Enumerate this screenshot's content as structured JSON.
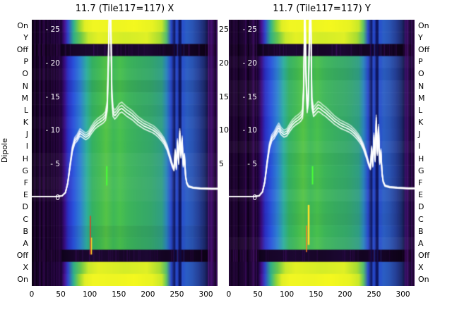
{
  "chart_data": {
    "type": "heatmap",
    "subtype": "per-dipole spectrum heatmap with white bandpass line overlay",
    "dipole_axis_label": "Dipole",
    "rows": [
      "On",
      "Y",
      "Off",
      "P",
      "O",
      "N",
      "M",
      "L",
      "K",
      "J",
      "I",
      "H",
      "G",
      "F",
      "E",
      "D",
      "C",
      "B",
      "A",
      "Off",
      "X",
      "On"
    ],
    "row_states": [
      "on",
      "bright",
      "off",
      "n",
      "n",
      "n",
      "n",
      "n",
      "n",
      "n",
      "n",
      "n",
      "n",
      "n",
      "n",
      "n",
      "n",
      "n",
      "n",
      "off",
      "bright",
      "on"
    ],
    "x_range": [
      0,
      320
    ],
    "x_ticks": [
      0,
      50,
      100,
      150,
      200,
      250,
      300
    ],
    "x_tick_labels": [
      "0",
      "50",
      "100",
      "150",
      "200",
      "250",
      "300"
    ],
    "y_ticks": [
      25,
      20,
      15,
      10,
      5,
      0
    ],
    "inside_y_tick_labels": [
      "- 25",
      "- 20",
      "- 15",
      "- 10",
      "- 5",
      "0"
    ],
    "right_axis_labels": [
      "25",
      "20",
      "15",
      "10",
      "5"
    ],
    "line_color": "#ffffff",
    "colormap_stops": {
      "n": [
        [
          0,
          "#0d0116"
        ],
        [
          0.15,
          "#120222"
        ],
        [
          0.175,
          "#3a0b7e"
        ],
        [
          0.195,
          "#2b2ec2"
        ],
        [
          0.225,
          "#2a52dc"
        ],
        [
          0.26,
          "#2e7fd2"
        ],
        [
          0.295,
          "#2fae9e"
        ],
        [
          0.325,
          "#35b163"
        ],
        [
          0.365,
          "#41ba52"
        ],
        [
          0.4,
          "#55c447"
        ],
        [
          0.44,
          "#3fb957"
        ],
        [
          0.475,
          "#49c14e"
        ],
        [
          0.52,
          "#3db55a"
        ],
        [
          0.58,
          "#38ad62"
        ],
        [
          0.64,
          "#35a76b"
        ],
        [
          0.7,
          "#309e85"
        ],
        [
          0.725,
          "#2b84bc"
        ],
        [
          0.75,
          "#2a49cc"
        ],
        [
          0.765,
          "#17246e"
        ],
        [
          0.78,
          "#2a4ed4"
        ],
        [
          0.795,
          "#101a64"
        ],
        [
          0.81,
          "#2a52cc"
        ],
        [
          0.835,
          "#2b5ec4"
        ],
        [
          0.865,
          "#2a55b4"
        ],
        [
          0.9,
          "#253f96"
        ],
        [
          0.93,
          "#1d2a6e"
        ],
        [
          0.955,
          "#120b34"
        ],
        [
          1,
          "#0c0114"
        ]
      ],
      "on": [
        [
          0,
          "#0d0116"
        ],
        [
          0.155,
          "#14032a"
        ],
        [
          0.175,
          "#4a1090"
        ],
        [
          0.195,
          "#3248cc"
        ],
        [
          0.225,
          "#2fb090"
        ],
        [
          0.255,
          "#8fd437"
        ],
        [
          0.285,
          "#e0ee25"
        ],
        [
          0.33,
          "#f2f722"
        ],
        [
          0.45,
          "#eef522"
        ],
        [
          0.55,
          "#f4f81e"
        ],
        [
          0.65,
          "#e8f322"
        ],
        [
          0.7,
          "#c8e82a"
        ],
        [
          0.725,
          "#62c460"
        ],
        [
          0.75,
          "#2a49cc"
        ],
        [
          0.765,
          "#17246e"
        ],
        [
          0.78,
          "#2a4ed4"
        ],
        [
          0.795,
          "#101a64"
        ],
        [
          0.81,
          "#2a52cc"
        ],
        [
          0.835,
          "#2b5ec4"
        ],
        [
          0.865,
          "#2a55b4"
        ],
        [
          0.9,
          "#253f96"
        ],
        [
          0.93,
          "#1d2a6e"
        ],
        [
          0.955,
          "#120b34"
        ],
        [
          1,
          "#0c0114"
        ]
      ],
      "bright": [
        [
          0,
          "#0d0116"
        ],
        [
          0.155,
          "#14032a"
        ],
        [
          0.175,
          "#400e86"
        ],
        [
          0.195,
          "#2f42c8"
        ],
        [
          0.225,
          "#2fae86"
        ],
        [
          0.265,
          "#6cc84a"
        ],
        [
          0.305,
          "#c8e82c"
        ],
        [
          0.36,
          "#e4f124"
        ],
        [
          0.5,
          "#d4ed28"
        ],
        [
          0.62,
          "#dff026"
        ],
        [
          0.69,
          "#a8dc32"
        ],
        [
          0.725,
          "#55bd6e"
        ],
        [
          0.75,
          "#2a49cc"
        ],
        [
          0.765,
          "#17246e"
        ],
        [
          0.78,
          "#2a4ed4"
        ],
        [
          0.795,
          "#101a64"
        ],
        [
          0.81,
          "#2a52cc"
        ],
        [
          0.835,
          "#2b5ec4"
        ],
        [
          0.865,
          "#2a55b4"
        ],
        [
          0.9,
          "#253f96"
        ],
        [
          0.93,
          "#1d2a6e"
        ],
        [
          0.955,
          "#120b34"
        ],
        [
          1,
          "#0c0114"
        ]
      ],
      "off": [
        [
          0,
          "#0a0110"
        ],
        [
          0.15,
          "#0d0218"
        ],
        [
          0.22,
          "#170529"
        ],
        [
          0.35,
          "#1c0831"
        ],
        [
          0.5,
          "#170627"
        ],
        [
          0.62,
          "#1c0833"
        ],
        [
          0.72,
          "#130421"
        ],
        [
          0.8,
          "#17052b"
        ],
        [
          0.92,
          "#0e0218"
        ],
        [
          1,
          "#090110"
        ]
      ]
    },
    "stripes": [
      {
        "x": 246,
        "w": 2,
        "color": "rgba(10,14,90,0.55)"
      },
      {
        "x": 251,
        "w": 2,
        "color": "rgba(40,70,210,0.45)"
      },
      {
        "x": 256,
        "w": 3,
        "color": "rgba(8,12,80,0.6)"
      },
      {
        "x": 262,
        "w": 1,
        "color": "rgba(40,70,210,0.35)"
      }
    ],
    "panels": [
      {
        "title": "11.7 (Tile117=117) X",
        "features": [
          {
            "x": 128,
            "r0": 12.1,
            "r1": 13.7,
            "w": 2,
            "color": "#49ff37"
          },
          {
            "x": 100,
            "r0": 16.2,
            "r1": 19.4,
            "w": 1.5,
            "color": "#e0401e"
          },
          {
            "x": 102,
            "r0": 18.0,
            "r1": 19.4,
            "w": 1.5,
            "color": "#ffd22a"
          }
        ],
        "line": [
          [
            0,
            0.2
          ],
          [
            40,
            0.2
          ],
          [
            52,
            0.3
          ],
          [
            58,
            0.8
          ],
          [
            62,
            2.2
          ],
          [
            66,
            4.8
          ],
          [
            70,
            7.2
          ],
          [
            74,
            8.4
          ],
          [
            78,
            8.8
          ],
          [
            83,
            9.6
          ],
          [
            88,
            9.3
          ],
          [
            93,
            9.0
          ],
          [
            98,
            9.3
          ],
          [
            103,
            10.0
          ],
          [
            108,
            10.6
          ],
          [
            113,
            11.0
          ],
          [
            118,
            11.3
          ],
          [
            123,
            11.6
          ],
          [
            127,
            12.0
          ],
          [
            130,
            13.5
          ],
          [
            132,
            20.0
          ],
          [
            134,
            29.0
          ],
          [
            136,
            27.0
          ],
          [
            138,
            15.0
          ],
          [
            140,
            12.6
          ],
          [
            143,
            12.2
          ],
          [
            147,
            12.6
          ],
          [
            151,
            13.1
          ],
          [
            155,
            13.3
          ],
          [
            159,
            13.0
          ],
          [
            163,
            12.7
          ],
          [
            168,
            12.4
          ],
          [
            173,
            12.1
          ],
          [
            178,
            11.7
          ],
          [
            183,
            11.3
          ],
          [
            188,
            11.0
          ],
          [
            193,
            10.7
          ],
          [
            198,
            10.5
          ],
          [
            203,
            10.3
          ],
          [
            208,
            10.1
          ],
          [
            213,
            9.8
          ],
          [
            218,
            9.4
          ],
          [
            223,
            8.9
          ],
          [
            228,
            8.3
          ],
          [
            233,
            7.4
          ],
          [
            238,
            6.0
          ],
          [
            242,
            4.8
          ],
          [
            245,
            4.2
          ],
          [
            247,
            6.8
          ],
          [
            249,
            4.4
          ],
          [
            251,
            8.2
          ],
          [
            253,
            5.2
          ],
          [
            255,
            9.6
          ],
          [
            257,
            6.2
          ],
          [
            259,
            8.6
          ],
          [
            261,
            4.8
          ],
          [
            263,
            6.2
          ],
          [
            265,
            3.2
          ],
          [
            267,
            2.2
          ],
          [
            270,
            1.7
          ],
          [
            278,
            1.5
          ],
          [
            290,
            1.4
          ],
          [
            310,
            1.35
          ],
          [
            320,
            1.35
          ]
        ]
      },
      {
        "title": "11.7 (Tile117=117) Y",
        "features": [
          {
            "x": 136,
            "r0": 15.3,
            "r1": 18.6,
            "w": 2.5,
            "color": "#ffe02a"
          },
          {
            "x": 143,
            "r0": 12.1,
            "r1": 13.6,
            "w": 2,
            "color": "#49ff37"
          },
          {
            "x": 133,
            "r0": 17.0,
            "r1": 19.2,
            "w": 1.5,
            "color": "#ff7a26"
          }
        ],
        "line": [
          [
            0,
            0.2
          ],
          [
            40,
            0.2
          ],
          [
            52,
            0.3
          ],
          [
            58,
            0.9
          ],
          [
            62,
            2.4
          ],
          [
            66,
            5.2
          ],
          [
            70,
            7.6
          ],
          [
            74,
            8.8
          ],
          [
            78,
            9.2
          ],
          [
            83,
            10.0
          ],
          [
            86,
            10.4
          ],
          [
            90,
            9.8
          ],
          [
            95,
            9.4
          ],
          [
            100,
            9.6
          ],
          [
            105,
            10.3
          ],
          [
            110,
            10.9
          ],
          [
            115,
            11.3
          ],
          [
            120,
            11.6
          ],
          [
            124,
            11.9
          ],
          [
            127,
            12.3
          ],
          [
            129,
            16.0
          ],
          [
            131,
            29.0
          ],
          [
            133,
            18.0
          ],
          [
            135,
            13.2
          ],
          [
            137,
            14.5
          ],
          [
            139,
            25.0
          ],
          [
            141,
            29.0
          ],
          [
            143,
            14.0
          ],
          [
            146,
            12.6
          ],
          [
            150,
            13.0
          ],
          [
            154,
            13.4
          ],
          [
            158,
            13.2
          ],
          [
            162,
            12.9
          ],
          [
            167,
            12.6
          ],
          [
            172,
            12.2
          ],
          [
            177,
            11.8
          ],
          [
            182,
            11.4
          ],
          [
            187,
            11.1
          ],
          [
            192,
            10.8
          ],
          [
            197,
            10.6
          ],
          [
            202,
            10.4
          ],
          [
            207,
            10.2
          ],
          [
            212,
            9.9
          ],
          [
            217,
            9.5
          ],
          [
            222,
            9.0
          ],
          [
            227,
            8.4
          ],
          [
            232,
            7.5
          ],
          [
            237,
            6.2
          ],
          [
            241,
            5.0
          ],
          [
            244,
            4.4
          ],
          [
            246,
            7.2
          ],
          [
            248,
            4.8
          ],
          [
            250,
            9.0
          ],
          [
            252,
            5.6
          ],
          [
            254,
            11.5
          ],
          [
            256,
            6.6
          ],
          [
            258,
            10.2
          ],
          [
            260,
            5.2
          ],
          [
            262,
            6.8
          ],
          [
            264,
            3.6
          ],
          [
            266,
            2.4
          ],
          [
            269,
            1.8
          ],
          [
            277,
            1.6
          ],
          [
            290,
            1.5
          ],
          [
            310,
            1.4
          ],
          [
            320,
            1.4
          ]
        ]
      }
    ]
  }
}
